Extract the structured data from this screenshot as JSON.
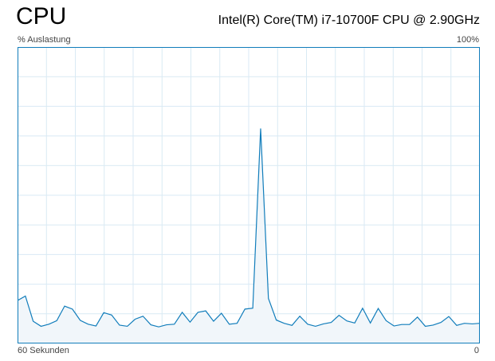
{
  "header": {
    "title": "CPU",
    "cpu_name": "Intel(R) Core(TM) i7-10700F CPU @ 2.90GHz"
  },
  "graph": {
    "y_label": "% Auslastung",
    "y_max_label": "100%",
    "x_label": "60 Sekunden",
    "x_min_label": "0",
    "line_color": "#117dbb",
    "fill_color": "#f1f6fa",
    "grid_color": "#d9eaf4",
    "border_color": "#117dbb"
  },
  "chart_data": {
    "type": "area",
    "x": [
      60,
      58.98,
      57.97,
      56.95,
      55.93,
      54.91,
      53.89,
      52.88,
      51.86,
      50.84,
      49.82,
      48.81,
      47.79,
      46.77,
      45.75,
      44.74,
      43.72,
      42.7,
      41.68,
      40.67,
      39.65,
      38.63,
      37.61,
      36.59,
      35.58,
      34.56,
      33.54,
      32.52,
      31.51,
      30.49,
      29.47,
      28.45,
      27.44,
      26.42,
      25.4,
      24.38,
      23.37,
      22.35,
      21.33,
      20.31,
      19.29,
      18.28,
      17.26,
      16.24,
      15.22,
      14.21,
      13.19,
      12.17,
      11.15,
      10.14,
      9.12,
      8.1,
      7.08,
      6.07,
      5.05,
      4.03,
      3.01,
      2,
      0.98,
      0
    ],
    "y": [
      14.5,
      16,
      7.5,
      5.8,
      6.5,
      7.7,
      12.6,
      11.6,
      7.8,
      6.5,
      5.9,
      10.4,
      9.6,
      6.2,
      5.8,
      8.2,
      9.2,
      6.3,
      5.6,
      6.3,
      6.5,
      10.5,
      7.2,
      10.5,
      11,
      7.5,
      10.2,
      6.5,
      6.8,
      11.6,
      11.9,
      72.5,
      15.2,
      7.9,
      6.8,
      6.1,
      9.2,
      6.5,
      5.8,
      6.6,
      7.1,
      9.5,
      7.6,
      6.9,
      11.9,
      6.9,
      11.8,
      7.7,
      5.9,
      6.4,
      6.4,
      8.9,
      5.8,
      6.2,
      7.1,
      9.1,
      6.1,
      6.8,
      6.6,
      6.8
    ],
    "xlim": [
      60,
      0
    ],
    "ylim": [
      0,
      100
    ],
    "grid": true,
    "grid_vertical_lines": 15,
    "grid_horizontal_lines": 10,
    "xlabel": "60 Sekunden",
    "ylabel": "% Auslastung"
  }
}
